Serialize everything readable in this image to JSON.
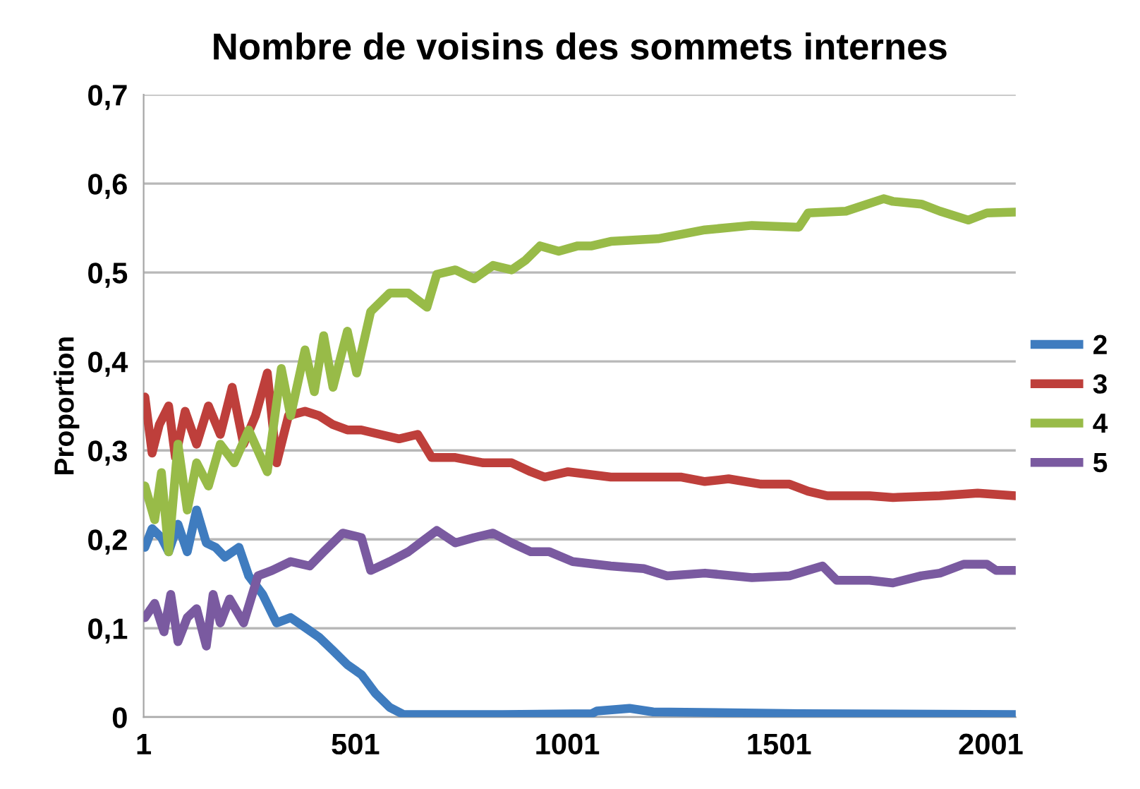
{
  "chart_data": {
    "type": "line",
    "title": "Nombre de voisins des sommets internes",
    "ylabel": "Proportion",
    "xlim": [
      1,
      2060
    ],
    "xticks": [
      1,
      501,
      1001,
      1501,
      2001
    ],
    "ylim": [
      0,
      0.7
    ],
    "yticks": [
      {
        "value": 0,
        "label": "0"
      },
      {
        "value": 0.1,
        "label": "0,1"
      },
      {
        "value": 0.2,
        "label": "0,2"
      },
      {
        "value": 0.3,
        "label": "0,3"
      },
      {
        "value": 0.4,
        "label": "0,4"
      },
      {
        "value": 0.5,
        "label": "0,5"
      },
      {
        "value": 0.6,
        "label": "0,6"
      },
      {
        "value": 0.7,
        "label": "0,7"
      }
    ],
    "grid": "y",
    "legend": "right",
    "marker": "none",
    "line_style": "solid",
    "series": [
      {
        "name": "2",
        "color": "#3f7cbf",
        "x": [
          4,
          21,
          43,
          60,
          82,
          104,
          126,
          149,
          171,
          193,
          226,
          249,
          282,
          315,
          348,
          382,
          415,
          448,
          482,
          515,
          548,
          582,
          615,
          681,
          848,
          1059,
          1071,
          1148,
          1204,
          1548,
          2059
        ],
        "values": [
          0.191,
          0.212,
          0.202,
          0.186,
          0.217,
          0.186,
          0.233,
          0.196,
          0.191,
          0.18,
          0.191,
          0.159,
          0.138,
          0.106,
          0.112,
          0.101,
          0.09,
          0.075,
          0.059,
          0.048,
          0.027,
          0.011,
          0.003,
          0.003,
          0.003,
          0.004,
          0.007,
          0.01,
          0.006,
          0.004,
          0.003
        ]
      },
      {
        "name": "3",
        "color": "#be3f3b",
        "x": [
          4,
          21,
          38,
          60,
          76,
          99,
          126,
          154,
          182,
          210,
          237,
          265,
          293,
          315,
          343,
          382,
          415,
          448,
          482,
          515,
          559,
          604,
          648,
          681,
          737,
          803,
          870,
          915,
          948,
          1003,
          1104,
          1160,
          1271,
          1326,
          1382,
          1459,
          1526,
          1570,
          1615,
          1715,
          1770,
          1881,
          1970,
          2059
        ],
        "values": [
          0.36,
          0.297,
          0.329,
          0.35,
          0.292,
          0.344,
          0.307,
          0.35,
          0.318,
          0.371,
          0.307,
          0.339,
          0.387,
          0.286,
          0.339,
          0.344,
          0.339,
          0.329,
          0.323,
          0.323,
          0.318,
          0.313,
          0.318,
          0.292,
          0.292,
          0.286,
          0.286,
          0.276,
          0.27,
          0.276,
          0.27,
          0.27,
          0.27,
          0.265,
          0.268,
          0.262,
          0.262,
          0.254,
          0.249,
          0.249,
          0.247,
          0.249,
          0.252,
          0.249
        ]
      },
      {
        "name": "4",
        "color": "#98bb48",
        "x": [
          4,
          27,
          43,
          60,
          82,
          104,
          126,
          154,
          182,
          215,
          249,
          293,
          326,
          348,
          382,
          404,
          426,
          448,
          482,
          504,
          537,
          582,
          626,
          670,
          693,
          737,
          781,
          826,
          870,
          903,
          937,
          981,
          1026,
          1059,
          1104,
          1215,
          1326,
          1437,
          1548,
          1570,
          1659,
          1748,
          1770,
          1837,
          1881,
          1948,
          1992,
          2059
        ],
        "values": [
          0.26,
          0.222,
          0.275,
          0.186,
          0.307,
          0.233,
          0.286,
          0.26,
          0.307,
          0.286,
          0.323,
          0.276,
          0.392,
          0.339,
          0.413,
          0.366,
          0.429,
          0.371,
          0.434,
          0.387,
          0.456,
          0.477,
          0.477,
          0.461,
          0.498,
          0.503,
          0.493,
          0.508,
          0.503,
          0.514,
          0.53,
          0.524,
          0.53,
          0.53,
          0.535,
          0.538,
          0.548,
          0.553,
          0.551,
          0.567,
          0.569,
          0.583,
          0.58,
          0.577,
          0.569,
          0.559,
          0.567,
          0.568
        ]
      },
      {
        "name": "5",
        "color": "#7a5aa0",
        "x": [
          4,
          27,
          49,
          65,
          82,
          104,
          126,
          149,
          165,
          182,
          204,
          237,
          271,
          304,
          348,
          393,
          426,
          471,
          515,
          537,
          582,
          626,
          693,
          737,
          781,
          826,
          870,
          915,
          959,
          1014,
          1104,
          1182,
          1237,
          1326,
          1437,
          1526,
          1604,
          1637,
          1715,
          1770,
          1837,
          1881,
          1937,
          1992,
          2014,
          2059
        ],
        "values": [
          0.112,
          0.128,
          0.096,
          0.138,
          0.085,
          0.112,
          0.122,
          0.08,
          0.138,
          0.106,
          0.133,
          0.106,
          0.159,
          0.165,
          0.175,
          0.17,
          0.186,
          0.207,
          0.202,
          0.165,
          0.175,
          0.186,
          0.21,
          0.196,
          0.202,
          0.207,
          0.196,
          0.186,
          0.186,
          0.175,
          0.17,
          0.167,
          0.159,
          0.162,
          0.157,
          0.159,
          0.17,
          0.154,
          0.154,
          0.151,
          0.159,
          0.162,
          0.172,
          0.172,
          0.165,
          0.165
        ]
      }
    ]
  }
}
